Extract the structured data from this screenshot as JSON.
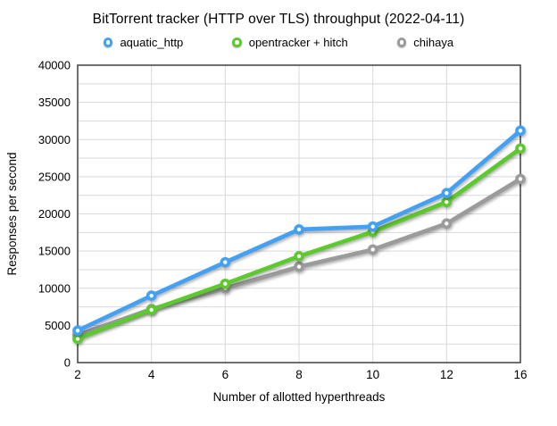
{
  "title": "BitTorrent tracker (HTTP over TLS) throughput (2022-04-11)",
  "chart_data": {
    "type": "line",
    "categories": [
      2,
      4,
      6,
      8,
      10,
      12,
      16
    ],
    "series": [
      {
        "name": "aquatic_http",
        "color": "#42a1f5",
        "values": [
          4300,
          9000,
          13500,
          17900,
          18300,
          22800,
          31200
        ]
      },
      {
        "name": "opentracker + hitch",
        "color": "#5cc92c",
        "values": [
          3200,
          7100,
          10600,
          14300,
          17600,
          21600,
          28800
        ]
      },
      {
        "name": "chihaya",
        "color": "#9b9b9b",
        "values": [
          3700,
          7200,
          10000,
          12900,
          15200,
          18700,
          24700
        ]
      }
    ],
    "title": "BitTorrent tracker (HTTP over TLS) throughput (2022-04-11)",
    "xlabel": "Number of allotted hyperthreads",
    "ylabel": "Responses per second",
    "ylim": [
      0,
      40000
    ],
    "ytick_step": 5000,
    "grid_step": 2500,
    "grid": true,
    "legend_position": "top"
  },
  "colors": {
    "grid": "#d9d9d9",
    "axis": "#3f3f3f",
    "text": "#000000",
    "background": "#ffffff"
  }
}
